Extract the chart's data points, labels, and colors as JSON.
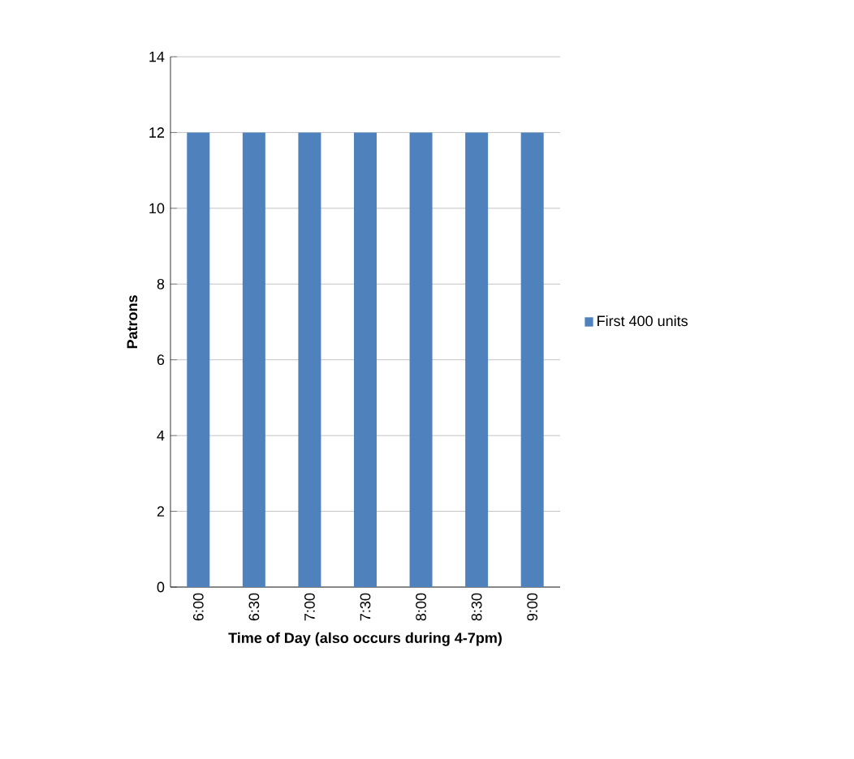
{
  "chart_data": {
    "type": "bar",
    "categories": [
      "6:00",
      "6:30",
      "7:00",
      "7:30",
      "8:00",
      "8:30",
      "9:00"
    ],
    "series": [
      {
        "name": "First 400 units",
        "color": "#4f81bd",
        "values": [
          12,
          12,
          12,
          12,
          12,
          12,
          12
        ]
      }
    ],
    "xlabel": "Time of Day (also occurs during 4-7pm)",
    "ylabel": "Patrons",
    "ylim": [
      0,
      14
    ],
    "yticks": [
      0,
      2,
      4,
      6,
      8,
      10,
      12,
      14
    ],
    "grid": "y",
    "legend": "right"
  }
}
